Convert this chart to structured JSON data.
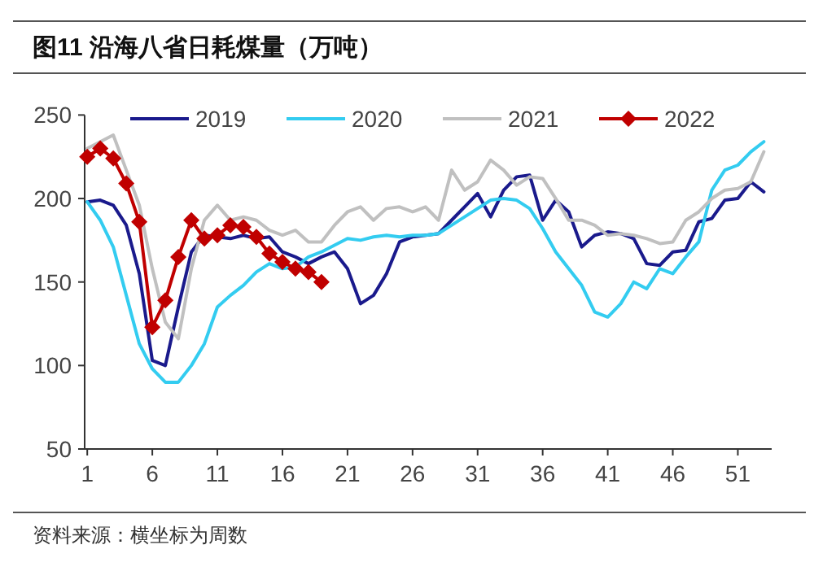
{
  "chart_data": {
    "type": "line",
    "title": "图11 沿海八省日耗煤量（万吨）",
    "annotations": [
      "资料来源：横坐标为周数"
    ],
    "x": [
      1,
      2,
      3,
      4,
      5,
      6,
      7,
      8,
      9,
      10,
      11,
      12,
      13,
      14,
      15,
      16,
      17,
      18,
      19,
      20,
      21,
      22,
      23,
      24,
      25,
      26,
      27,
      28,
      29,
      30,
      31,
      32,
      33,
      34,
      35,
      36,
      37,
      38,
      39,
      40,
      41,
      42,
      43,
      44,
      45,
      46,
      47,
      48,
      49,
      50,
      51,
      52,
      53
    ],
    "xlim": [
      0.8,
      53.6
    ],
    "xticks": [
      1,
      6,
      11,
      16,
      21,
      26,
      31,
      36,
      41,
      46,
      51
    ],
    "ylim": [
      50,
      250
    ],
    "yticks": [
      50,
      100,
      150,
      200,
      250
    ],
    "legend": "top",
    "line_style": "solid",
    "series": [
      {
        "name": "2019",
        "color": "#1a1a8c",
        "marker": "none",
        "values": [
          198,
          199,
          196,
          184,
          155,
          103,
          100,
          135,
          168,
          178,
          177,
          176,
          178,
          176,
          177,
          168,
          165,
          161,
          165,
          168,
          158,
          137,
          142,
          155,
          174,
          177,
          178,
          179,
          187,
          195,
          203,
          189,
          205,
          213,
          214,
          187,
          199,
          192,
          171,
          178,
          180,
          179,
          176,
          161,
          160,
          168,
          169,
          186,
          188,
          199,
          200,
          210,
          204
        ]
      },
      {
        "name": "2020",
        "color": "#33ccf0",
        "marker": "none",
        "values": [
          198,
          187,
          171,
          142,
          113,
          98,
          90,
          90,
          100,
          113,
          135,
          142,
          148,
          156,
          161,
          158,
          159,
          165,
          168,
          172,
          176,
          175,
          177,
          178,
          177,
          178,
          178,
          179,
          184,
          189,
          194,
          199,
          200,
          199,
          194,
          182,
          168,
          158,
          148,
          132,
          129,
          137,
          150,
          146,
          158,
          155,
          165,
          174,
          205,
          217,
          220,
          228,
          234
        ]
      },
      {
        "name": "2021",
        "color": "#c0c0c0",
        "marker": "none",
        "values": [
          230,
          234,
          238,
          217,
          196,
          158,
          126,
          116,
          158,
          187,
          196,
          187,
          189,
          187,
          181,
          178,
          181,
          174,
          174,
          184,
          192,
          195,
          187,
          194,
          195,
          192,
          195,
          187,
          217,
          205,
          210,
          223,
          217,
          208,
          213,
          212,
          200,
          187,
          187,
          184,
          178,
          179,
          178,
          176,
          173,
          174,
          187,
          192,
          200,
          205,
          206,
          210,
          228
        ]
      },
      {
        "name": "2022",
        "color": "#c00000",
        "marker": "diamond",
        "x": [
          1,
          2,
          3,
          4,
          5,
          6,
          7,
          8,
          9,
          10,
          11,
          12,
          13,
          14,
          15,
          16,
          17,
          18,
          19
        ],
        "values": [
          225,
          230,
          224,
          209,
          186,
          123,
          139,
          165,
          187,
          176,
          178,
          184,
          183,
          177,
          167,
          162,
          158,
          156,
          150
        ]
      }
    ]
  }
}
